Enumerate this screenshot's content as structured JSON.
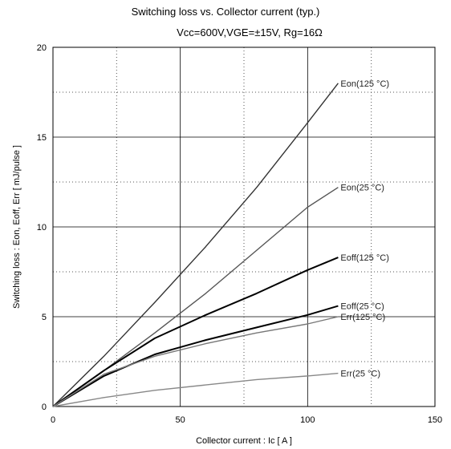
{
  "chart_data": {
    "type": "line",
    "title": "Switching loss  vs.  Collector current  (typ.)",
    "subtitle": "Vcc=600V,VGE=±15V, Rg=16Ω",
    "xlabel": "Collector current  :  Ic  [ A ]",
    "ylabel": "Switching loss  :  Eon, Eoff, Err  [ mJ/pulse ]",
    "xlim": [
      0,
      150
    ],
    "ylim": [
      0,
      20
    ],
    "x_ticks": [
      "0",
      "50",
      "100",
      "150"
    ],
    "y_ticks": [
      "0",
      "5",
      "10",
      "15",
      "20"
    ],
    "grid": "solid at major ticks, dotted at midpoints",
    "series": [
      {
        "name": "Eon(125 °C)",
        "color": "#333333",
        "x": [
          0,
          20,
          40,
          60,
          80,
          100,
          112
        ],
        "y": [
          0,
          2.8,
          5.8,
          8.9,
          12.2,
          15.8,
          18.0
        ]
      },
      {
        "name": "Eon(25 °C)",
        "color": "#555555",
        "x": [
          0,
          20,
          40,
          60,
          80,
          100,
          112
        ],
        "y": [
          0,
          2.0,
          4.1,
          6.3,
          8.7,
          11.1,
          12.2
        ]
      },
      {
        "name": "Eoff(125 °C)",
        "color": "#000000",
        "x": [
          0,
          20,
          40,
          60,
          80,
          100,
          112
        ],
        "y": [
          0,
          2.0,
          3.8,
          5.1,
          6.3,
          7.6,
          8.3
        ]
      },
      {
        "name": "Eoff(25 °C)",
        "color": "#000000",
        "x": [
          0,
          20,
          40,
          60,
          80,
          100,
          112
        ],
        "y": [
          0,
          1.7,
          2.9,
          3.7,
          4.4,
          5.1,
          5.6
        ]
      },
      {
        "name": "Err(125 °C)",
        "color": "#777777",
        "x": [
          0,
          20,
          40,
          60,
          80,
          100,
          112
        ],
        "y": [
          0,
          1.8,
          2.8,
          3.5,
          4.1,
          4.6,
          5.0
        ]
      },
      {
        "name": "Err(25 °C)",
        "color": "#888888",
        "x": [
          0,
          20,
          40,
          60,
          80,
          100,
          112
        ],
        "y": [
          0,
          0.5,
          0.9,
          1.2,
          1.5,
          1.7,
          1.85
        ]
      }
    ]
  }
}
